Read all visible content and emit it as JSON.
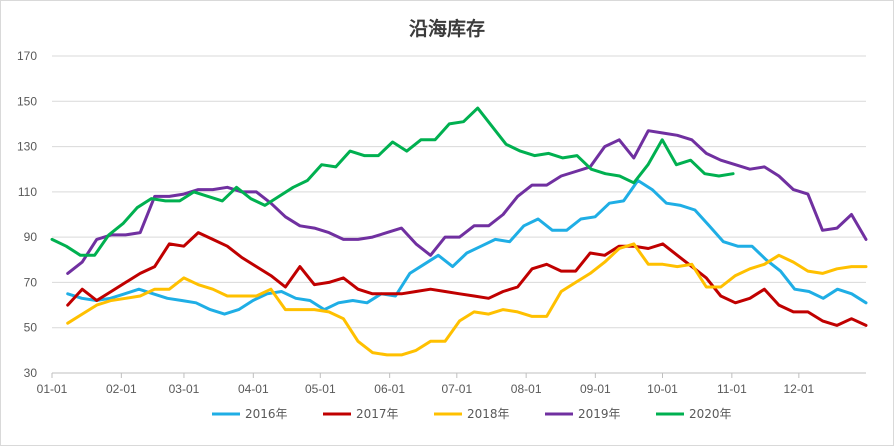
{
  "chart_data": {
    "type": "line",
    "title": "沿海库存",
    "xlabel": "",
    "ylabel": "",
    "ylim": [
      30,
      170
    ],
    "yticks": [
      30,
      50,
      70,
      90,
      110,
      130,
      150,
      170
    ],
    "xlim": [
      0,
      52
    ],
    "xticks": [
      {
        "label": "01-01",
        "week": 0
      },
      {
        "label": "02-01",
        "week": 4.43
      },
      {
        "label": "03-01",
        "week": 8.43
      },
      {
        "label": "04-01",
        "week": 12.86
      },
      {
        "label": "05-01",
        "week": 17.14
      },
      {
        "label": "06-01",
        "week": 21.57
      },
      {
        "label": "07-01",
        "week": 25.86
      },
      {
        "label": "08-01",
        "week": 30.29
      },
      {
        "label": "09-01",
        "week": 34.71
      },
      {
        "label": "10-01",
        "week": 39
      },
      {
        "label": "11-01",
        "week": 43.43
      },
      {
        "label": "12-01",
        "week": 47.71
      }
    ],
    "grid": true,
    "legend_position": "bottom",
    "series": [
      {
        "name": "2016年",
        "color": "#1faee5",
        "start_week": 1,
        "values": [
          65,
          63,
          62,
          63,
          65,
          67,
          65,
          63,
          62,
          61,
          58,
          56,
          58,
          62,
          65,
          66,
          63,
          62,
          58,
          61,
          62,
          61,
          65,
          64,
          74,
          78,
          82,
          77,
          83,
          86,
          89,
          88,
          95,
          98,
          93,
          93,
          98,
          99,
          105,
          106,
          115,
          111,
          105,
          104,
          102,
          95,
          88,
          86,
          86,
          80,
          75,
          67,
          66,
          63,
          67,
          65,
          61
        ]
      },
      {
        "name": "2017年",
        "color": "#c00000",
        "start_week": 1,
        "values": [
          60,
          67,
          62,
          66,
          70,
          74,
          77,
          87,
          86,
          92,
          89,
          86,
          81,
          77,
          73,
          68,
          77,
          69,
          70,
          72,
          67,
          65,
          65,
          65,
          66,
          67,
          66,
          65,
          64,
          63,
          66,
          68,
          76,
          78,
          75,
          75,
          83,
          82,
          86,
          86,
          85,
          87,
          82,
          77,
          72,
          64,
          61,
          63,
          67,
          60,
          57,
          57,
          53,
          51,
          54,
          51
        ]
      },
      {
        "name": "2018年",
        "color": "#ffc000",
        "start_week": 1,
        "values": [
          52,
          56,
          60,
          62,
          63,
          64,
          67,
          67,
          72,
          69,
          67,
          64,
          64,
          64,
          67,
          58,
          58,
          58,
          57,
          54,
          44,
          39,
          38,
          38,
          40,
          44,
          44,
          53,
          57,
          56,
          58,
          57,
          55,
          55,
          66,
          70,
          74,
          79,
          85,
          87,
          78,
          78,
          77,
          78,
          68,
          68,
          73,
          76,
          78,
          82,
          79,
          75,
          74,
          76,
          77,
          77
        ]
      },
      {
        "name": "2019年",
        "color": "#7030a0",
        "start_week": 1,
        "values": [
          74,
          79,
          89,
          91,
          91,
          92,
          108,
          108,
          109,
          111,
          111,
          112,
          110,
          110,
          105,
          99,
          95,
          94,
          92,
          89,
          89,
          90,
          92,
          94,
          87,
          82,
          90,
          90,
          95,
          95,
          100,
          108,
          113,
          113,
          117,
          119,
          121,
          130,
          133,
          125,
          137,
          136,
          135,
          133,
          127,
          124,
          122,
          120,
          121,
          117,
          111,
          109,
          93,
          94,
          100,
          89
        ]
      },
      {
        "name": "2020年",
        "color": "#00b050",
        "start_week": 0,
        "values": [
          89,
          86,
          82,
          82,
          91,
          96,
          103,
          107,
          106,
          106,
          110,
          108,
          106,
          112,
          107,
          104,
          108,
          112,
          115,
          122,
          121,
          128,
          126,
          126,
          132,
          128,
          133,
          133,
          140,
          141,
          147,
          139,
          131,
          128,
          126,
          127,
          125,
          126,
          120,
          118,
          117,
          114,
          122,
          133,
          122,
          124,
          118,
          117,
          118
        ]
      }
    ]
  }
}
